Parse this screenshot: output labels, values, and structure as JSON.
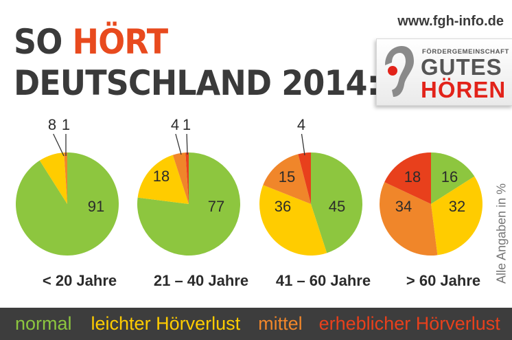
{
  "header": {
    "title_line1_a": "SO",
    "title_line1_b": "HÖRT",
    "title_line2": "DEUTSCHLAND 2014:",
    "url": "www.fgh-info.de"
  },
  "logo": {
    "small": "FÖRDERGEMEINSCHAFT",
    "line1": "GUTES",
    "line2": "HÖREN"
  },
  "note": "Alle Angaben in %",
  "colors": {
    "normal": "#8dc63f",
    "leicht": "#ffcc00",
    "mittel": "#f0862a",
    "erheblich": "#e8401c",
    "title": "#3a3a3a",
    "accent": "#e84a1e",
    "legend_bg": "#3d3d3d"
  },
  "legend": [
    {
      "key": "normal",
      "label": "normal",
      "color": "#8dc63f"
    },
    {
      "key": "leicht",
      "label": "leichter Hörverlust",
      "color": "#ffcc00"
    },
    {
      "key": "mittel",
      "label": "mittel",
      "color": "#f0862a"
    },
    {
      "key": "erheblich",
      "label": "erheblicher Hörverlust",
      "color": "#e8401c"
    }
  ],
  "chart_data": [
    {
      "type": "pie",
      "category": "< 20 Jahre",
      "slices": [
        {
          "name": "normal",
          "value": 91,
          "label": "91"
        },
        {
          "name": "leichter Hörverlust",
          "value": 8,
          "label": "8"
        },
        {
          "name": "mittel",
          "value": 1,
          "label": "1"
        }
      ]
    },
    {
      "type": "pie",
      "category": "21 – 40 Jahre",
      "slices": [
        {
          "name": "normal",
          "value": 77,
          "label": "77"
        },
        {
          "name": "leichter Hörverlust",
          "value": 18,
          "label": "18"
        },
        {
          "name": "mittel",
          "value": 4,
          "label": "4"
        },
        {
          "name": "erheblicher Hörverlust",
          "value": 1,
          "label": "1"
        }
      ]
    },
    {
      "type": "pie",
      "category": "41 – 60 Jahre",
      "slices": [
        {
          "name": "normal",
          "value": 45,
          "label": "45"
        },
        {
          "name": "leichter Hörverlust",
          "value": 36,
          "label": "36"
        },
        {
          "name": "mittel",
          "value": 15,
          "label": "15"
        },
        {
          "name": "erheblicher Hörverlust",
          "value": 4,
          "label": "4"
        }
      ]
    },
    {
      "type": "pie",
      "category": "> 60 Jahre",
      "slices": [
        {
          "name": "normal",
          "value": 16,
          "label": "16"
        },
        {
          "name": "leichter Hörverlust",
          "value": 32,
          "label": "32"
        },
        {
          "name": "mittel",
          "value": 34,
          "label": "34"
        },
        {
          "name": "erheblicher Hörverlust",
          "value": 18,
          "label": "18"
        }
      ]
    }
  ]
}
